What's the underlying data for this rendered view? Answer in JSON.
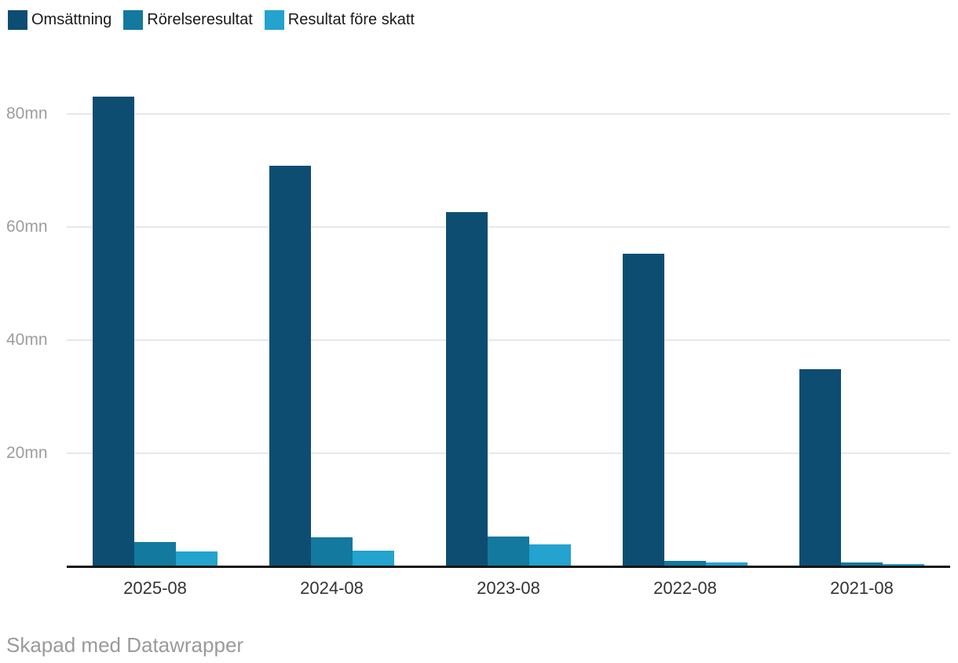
{
  "legend": {
    "items": [
      {
        "label": "Omsättning",
        "color": "#0e4d72"
      },
      {
        "label": "Rörelseresultat",
        "color": "#13799f"
      },
      {
        "label": "Resultat före skatt",
        "color": "#23a3cd"
      }
    ]
  },
  "chart_data": {
    "type": "bar",
    "categories": [
      "2025-08",
      "2024-08",
      "2023-08",
      "2022-08",
      "2021-08"
    ],
    "series": [
      {
        "name": "Omsättning",
        "color": "#0e4d72",
        "values": [
          83.0,
          70.8,
          62.6,
          55.3,
          34.9
        ]
      },
      {
        "name": "Rörelseresultat",
        "color": "#13799f",
        "values": [
          4.3,
          5.2,
          5.3,
          1.0,
          0.65
        ]
      },
      {
        "name": "Resultat före skatt",
        "color": "#23a3cd",
        "values": [
          2.7,
          2.8,
          3.9,
          0.7,
          0.45
        ]
      }
    ],
    "title": "",
    "xlabel": "",
    "ylabel": "",
    "unit": "mn",
    "y_ticks": [
      {
        "value": 20,
        "label": "20mn"
      },
      {
        "value": 40,
        "label": "40mn"
      },
      {
        "value": 60,
        "label": "60mn"
      },
      {
        "value": 80,
        "label": "80mn"
      }
    ],
    "ylim": [
      0,
      89
    ],
    "grid": "horizontal",
    "legend_position": "top-left"
  },
  "footer": {
    "credit": "Skapad med Datawrapper"
  },
  "colors": {
    "background": "#ffffff",
    "gridline": "#e8e8e8",
    "axis_line": "#161616",
    "y_tick_text": "#9d9d9d",
    "x_tick_text": "#333333",
    "legend_text": "#1a1a1a",
    "footer_text": "#9a9a9a"
  }
}
